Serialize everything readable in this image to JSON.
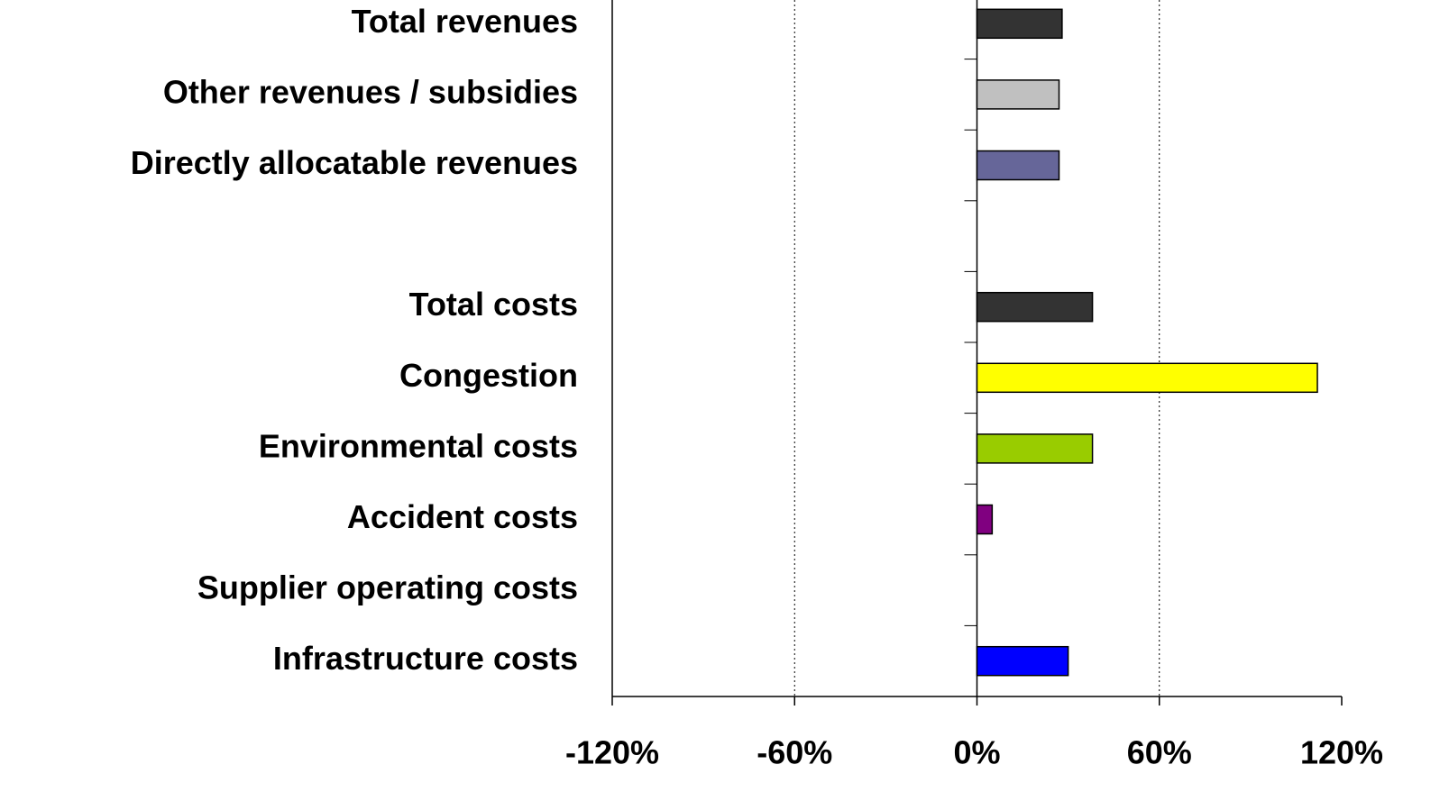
{
  "chart_data": {
    "type": "barh",
    "categories": [
      "Total revenues",
      "Other revenues / subsidies",
      "Directly allocatable revenues",
      null,
      "Total costs",
      "Congestion",
      "Environmental costs",
      "Accident costs",
      "Supplier operating costs",
      "Infrastructure costs"
    ],
    "values": [
      28,
      27,
      27,
      null,
      38,
      112,
      38,
      5,
      0,
      30
    ],
    "colors": [
      "#333333",
      "#c0c0c0",
      "#666699",
      null,
      "#333333",
      "#ffff00",
      "#99cc00",
      "#800080",
      "#ff6600",
      "#0000ff"
    ],
    "xlim": [
      -120,
      120
    ],
    "xticks": [
      {
        "value": -120,
        "label": "-120%"
      },
      {
        "value": -60,
        "label": "-60%"
      },
      {
        "value": 0,
        "label": "0%"
      },
      {
        "value": 60,
        "label": "60%"
      },
      {
        "value": 120,
        "label": "120%"
      }
    ],
    "grid": true
  }
}
